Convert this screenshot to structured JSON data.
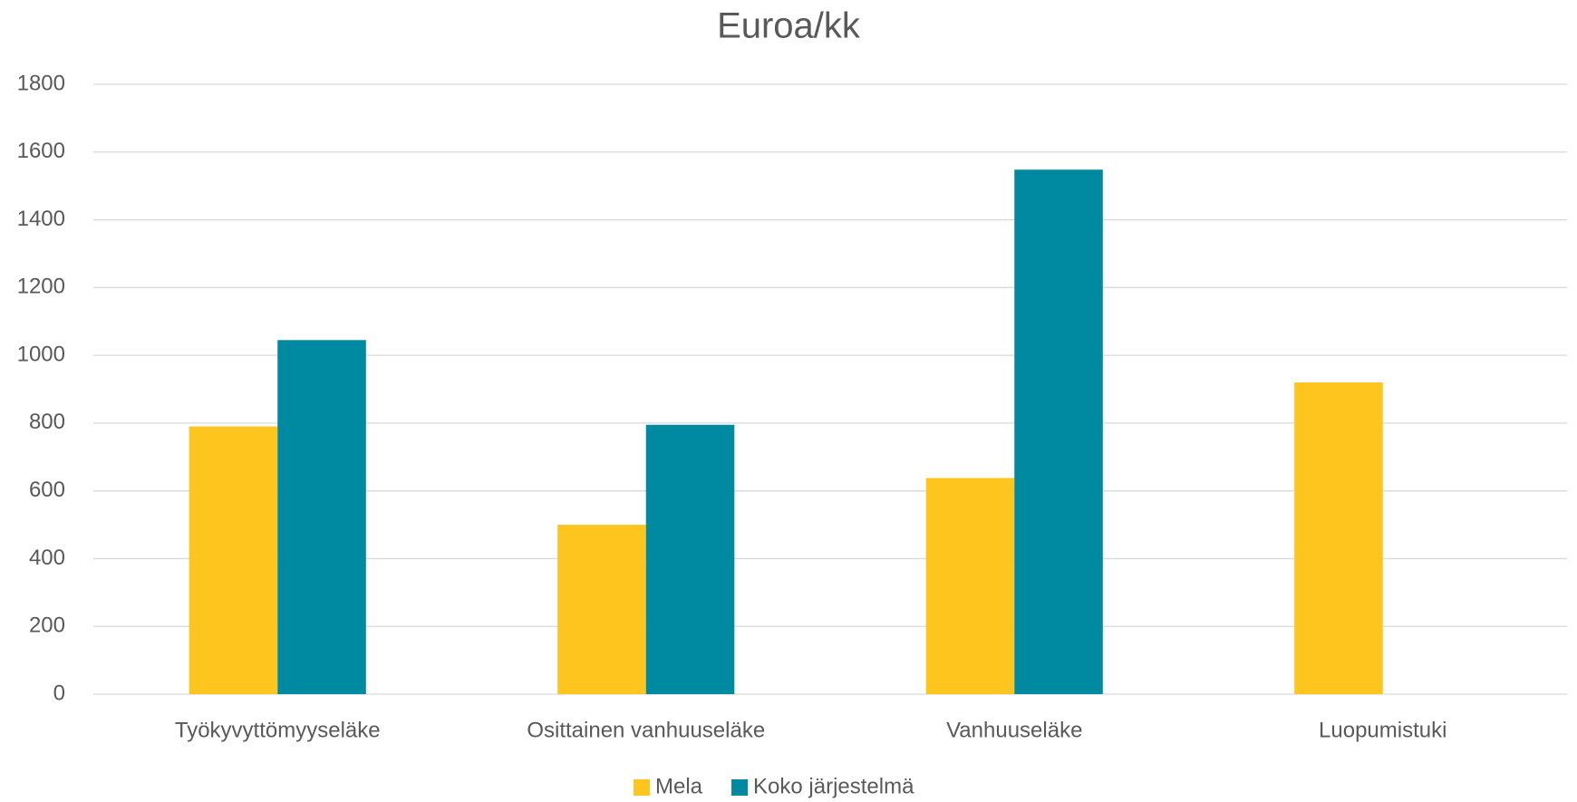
{
  "chart_data": {
    "type": "bar",
    "title": "Euroa/kk",
    "categories": [
      "Työkyvyttömyyseläke",
      "Osittainen vanhuuseläke",
      "Vanhuuseläke",
      "Luopumistuki"
    ],
    "series": [
      {
        "name": "Mela",
        "color": "#fec51e",
        "values": [
          790,
          500,
          638,
          920
        ]
      },
      {
        "name": "Koko järjestelmä",
        "color": "#008aa1",
        "values": [
          1045,
          795,
          1548,
          null
        ]
      }
    ],
    "ylim": [
      0,
      1800
    ],
    "yticks": [
      0,
      200,
      400,
      600,
      800,
      1000,
      1200,
      1400,
      1600,
      1800
    ],
    "grid": true,
    "legend": "bottom"
  }
}
